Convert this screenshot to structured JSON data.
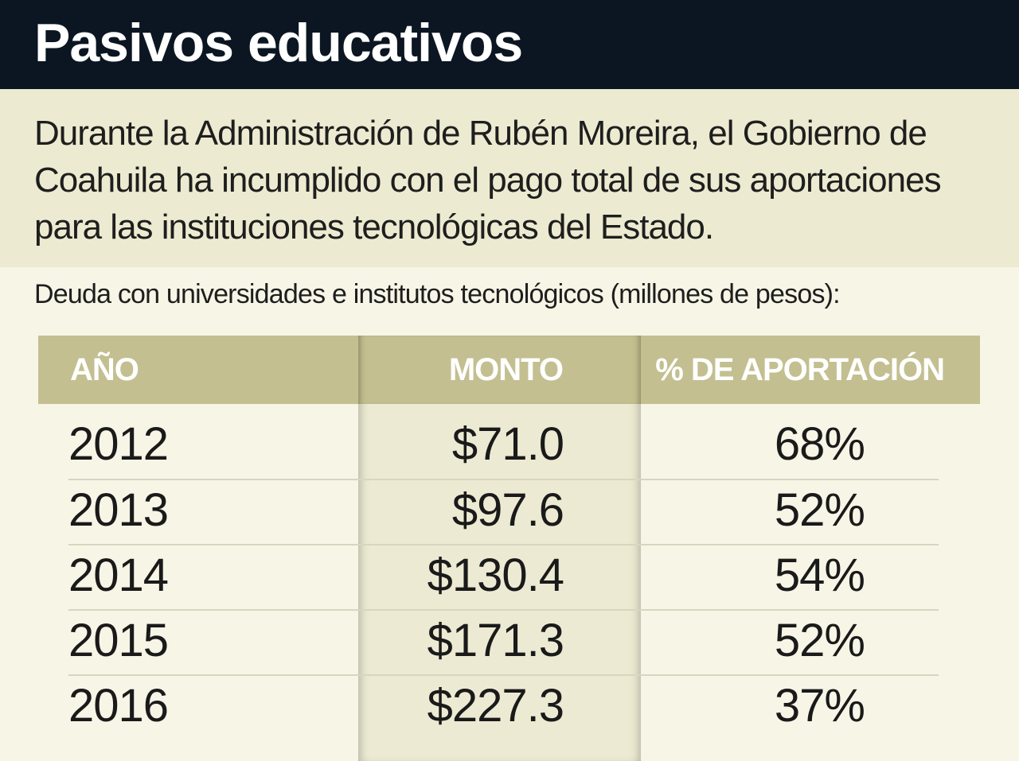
{
  "title": "Pasivos educativos",
  "intro": "Durante la Administración de Rubén Moreira, el Gobierno de Coahuila ha incumplido con el pago total de sus aportaciones para las instituciones tecnológicas del Estado.",
  "subtitle": "Deuda con universidades e institutos tecnológicos (millones de pesos):",
  "colors": {
    "header_bg": "#0b1622",
    "intro_bg": "#ecead0",
    "table_header_bg": "#c3bf90",
    "page_bg": "#f6f5e6"
  },
  "chart_data": {
    "type": "table",
    "columns": [
      "AÑO",
      "MONTO",
      "% DE APORTACIÓN"
    ],
    "rows": [
      [
        "2012",
        "$71.0",
        "68%"
      ],
      [
        "2013",
        "$97.6",
        "52%"
      ],
      [
        "2014",
        "$130.4",
        "54%"
      ],
      [
        "2015",
        "$171.3",
        "52%"
      ],
      [
        "2016",
        "$227.3",
        "37%"
      ]
    ]
  }
}
